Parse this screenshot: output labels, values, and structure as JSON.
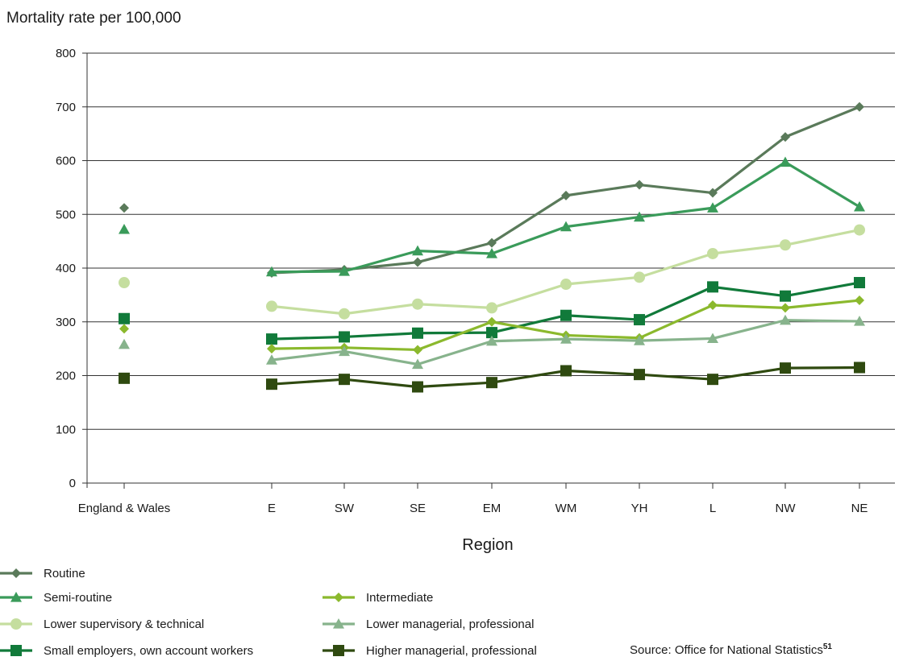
{
  "chart_data": {
    "type": "line",
    "title": "",
    "ylabel": "Mortality rate per 100,000",
    "xlabel": "Region",
    "ylim": [
      0,
      800
    ],
    "yticks": [
      0,
      100,
      200,
      300,
      400,
      500,
      600,
      700,
      800
    ],
    "grid": true,
    "legend_position": "bottom",
    "categories": [
      "England & Wales",
      "E",
      "SW",
      "SE",
      "EM",
      "WM",
      "YH",
      "L",
      "NW",
      "NE"
    ],
    "series": [
      {
        "name": "Routine",
        "color": "#5a7a5a",
        "marker": "diamond",
        "values": [
          512,
          391,
          397,
          411,
          447,
          535,
          555,
          540,
          644,
          700
        ]
      },
      {
        "name": "Semi-routine",
        "color": "#3a9b5a",
        "marker": "triangle",
        "values": [
          472,
          393,
          394,
          432,
          427,
          477,
          495,
          512,
          597,
          514
        ]
      },
      {
        "name": "Lower supervisory & technical",
        "color": "#c5de9f",
        "marker": "circle",
        "values": [
          373,
          329,
          315,
          333,
          326,
          370,
          383,
          427,
          443,
          471
        ]
      },
      {
        "name": "Small employers, own account workers",
        "color": "#117a3a",
        "marker": "square",
        "values": [
          306,
          268,
          272,
          279,
          280,
          312,
          304,
          365,
          348,
          373
        ]
      },
      {
        "name": "Intermediate",
        "color": "#8bb92d",
        "marker": "diamond",
        "values": [
          287,
          250,
          252,
          248,
          300,
          275,
          270,
          331,
          326,
          340
        ]
      },
      {
        "name": "Lower managerial, professional",
        "color": "#87b38c",
        "marker": "triangle",
        "values": [
          258,
          229,
          245,
          221,
          264,
          268,
          265,
          269,
          303,
          301
        ]
      },
      {
        "name": "Higher managerial, professional",
        "color": "#2f4a10",
        "marker": "square",
        "values": [
          195,
          184,
          193,
          179,
          187,
          209,
          202,
          193,
          214,
          215
        ]
      }
    ]
  },
  "legend": [
    {
      "label": "Routine",
      "color": "#5a7a5a",
      "marker": "diamond"
    },
    {
      "label": "Semi-routine",
      "color": "#3a9b5a",
      "marker": "triangle"
    },
    {
      "label": "Intermediate",
      "color": "#8bb92d",
      "marker": "diamond"
    },
    {
      "label": "Lower supervisory & technical",
      "color": "#c5de9f",
      "marker": "circle"
    },
    {
      "label": "Lower managerial, professional",
      "color": "#87b38c",
      "marker": "triangle"
    },
    {
      "label": "Small employers, own account workers",
      "color": "#117a3a",
      "marker": "square"
    },
    {
      "label": "Higher managerial, professional",
      "color": "#2f4a10",
      "marker": "square"
    }
  ],
  "source": {
    "text": "Source: Office for National Statistics",
    "footnote": "51"
  }
}
